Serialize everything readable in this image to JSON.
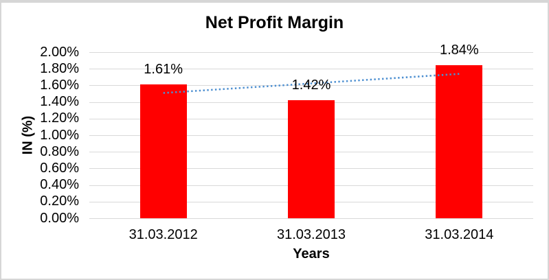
{
  "window": {
    "background": "#ffffff",
    "border_color": "#d6d6d6"
  },
  "chart_data": {
    "type": "bar",
    "title": "Net Profit Margin",
    "xlabel": "Years",
    "ylabel": "IN (%)",
    "categories": [
      "31.03.2012",
      "31.03.2013",
      "31.03.2014"
    ],
    "series": [
      {
        "name": "Net Profit Margin",
        "values": [
          1.61,
          1.42,
          1.84
        ]
      }
    ],
    "data_labels": [
      "1.61%",
      "1.42%",
      "1.84%"
    ],
    "y_ticks": [
      "2.00%",
      "1.80%",
      "1.60%",
      "1.40%",
      "1.20%",
      "1.00%",
      "0.80%",
      "0.60%",
      "0.40%",
      "0.20%",
      "0.00%"
    ],
    "ylim": [
      0,
      2.0
    ],
    "grid": true,
    "legend": "none",
    "bar_color": "#FF0000",
    "gridline_color": "#D9D9D9",
    "text_color": "#000000",
    "trendline": {
      "type": "linear",
      "style": "dotted",
      "color": "#4E90D1"
    }
  }
}
